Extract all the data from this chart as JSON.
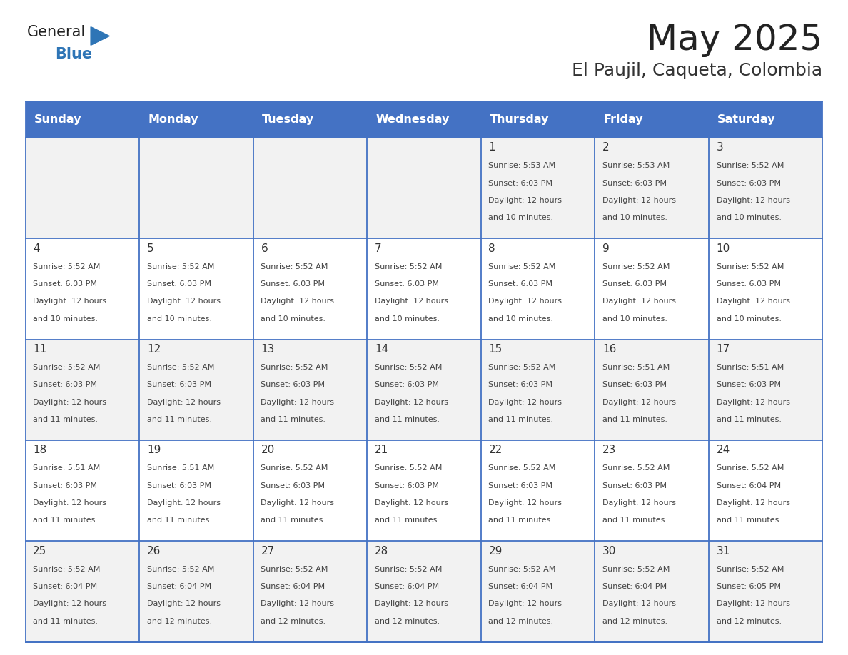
{
  "title": "May 2025",
  "subtitle": "El Paujil, Caqueta, Colombia",
  "days_of_week": [
    "Sunday",
    "Monday",
    "Tuesday",
    "Wednesday",
    "Thursday",
    "Friday",
    "Saturday"
  ],
  "header_bg": "#4472C4",
  "header_text_color": "#FFFFFF",
  "cell_bg_even": "#F2F2F2",
  "cell_bg_odd": "#FFFFFF",
  "cell_border_color": "#4472C4",
  "day_number_color": "#333333",
  "cell_text_color": "#444444",
  "title_color": "#222222",
  "subtitle_color": "#333333",
  "logo_general_color": "#222222",
  "logo_blue_color": "#2E75B6",
  "weeks": [
    {
      "days": [
        {
          "date": null,
          "sunrise": null,
          "sunset": null,
          "daylight_hours": null,
          "daylight_minutes": null
        },
        {
          "date": null,
          "sunrise": null,
          "sunset": null,
          "daylight_hours": null,
          "daylight_minutes": null
        },
        {
          "date": null,
          "sunrise": null,
          "sunset": null,
          "daylight_hours": null,
          "daylight_minutes": null
        },
        {
          "date": null,
          "sunrise": null,
          "sunset": null,
          "daylight_hours": null,
          "daylight_minutes": null
        },
        {
          "date": 1,
          "sunrise": "5:53 AM",
          "sunset": "6:03 PM",
          "daylight_hours": 12,
          "daylight_minutes": 10
        },
        {
          "date": 2,
          "sunrise": "5:53 AM",
          "sunset": "6:03 PM",
          "daylight_hours": 12,
          "daylight_minutes": 10
        },
        {
          "date": 3,
          "sunrise": "5:52 AM",
          "sunset": "6:03 PM",
          "daylight_hours": 12,
          "daylight_minutes": 10
        }
      ]
    },
    {
      "days": [
        {
          "date": 4,
          "sunrise": "5:52 AM",
          "sunset": "6:03 PM",
          "daylight_hours": 12,
          "daylight_minutes": 10
        },
        {
          "date": 5,
          "sunrise": "5:52 AM",
          "sunset": "6:03 PM",
          "daylight_hours": 12,
          "daylight_minutes": 10
        },
        {
          "date": 6,
          "sunrise": "5:52 AM",
          "sunset": "6:03 PM",
          "daylight_hours": 12,
          "daylight_minutes": 10
        },
        {
          "date": 7,
          "sunrise": "5:52 AM",
          "sunset": "6:03 PM",
          "daylight_hours": 12,
          "daylight_minutes": 10
        },
        {
          "date": 8,
          "sunrise": "5:52 AM",
          "sunset": "6:03 PM",
          "daylight_hours": 12,
          "daylight_minutes": 10
        },
        {
          "date": 9,
          "sunrise": "5:52 AM",
          "sunset": "6:03 PM",
          "daylight_hours": 12,
          "daylight_minutes": 10
        },
        {
          "date": 10,
          "sunrise": "5:52 AM",
          "sunset": "6:03 PM",
          "daylight_hours": 12,
          "daylight_minutes": 10
        }
      ]
    },
    {
      "days": [
        {
          "date": 11,
          "sunrise": "5:52 AM",
          "sunset": "6:03 PM",
          "daylight_hours": 12,
          "daylight_minutes": 11
        },
        {
          "date": 12,
          "sunrise": "5:52 AM",
          "sunset": "6:03 PM",
          "daylight_hours": 12,
          "daylight_minutes": 11
        },
        {
          "date": 13,
          "sunrise": "5:52 AM",
          "sunset": "6:03 PM",
          "daylight_hours": 12,
          "daylight_minutes": 11
        },
        {
          "date": 14,
          "sunrise": "5:52 AM",
          "sunset": "6:03 PM",
          "daylight_hours": 12,
          "daylight_minutes": 11
        },
        {
          "date": 15,
          "sunrise": "5:52 AM",
          "sunset": "6:03 PM",
          "daylight_hours": 12,
          "daylight_minutes": 11
        },
        {
          "date": 16,
          "sunrise": "5:51 AM",
          "sunset": "6:03 PM",
          "daylight_hours": 12,
          "daylight_minutes": 11
        },
        {
          "date": 17,
          "sunrise": "5:51 AM",
          "sunset": "6:03 PM",
          "daylight_hours": 12,
          "daylight_minutes": 11
        }
      ]
    },
    {
      "days": [
        {
          "date": 18,
          "sunrise": "5:51 AM",
          "sunset": "6:03 PM",
          "daylight_hours": 12,
          "daylight_minutes": 11
        },
        {
          "date": 19,
          "sunrise": "5:51 AM",
          "sunset": "6:03 PM",
          "daylight_hours": 12,
          "daylight_minutes": 11
        },
        {
          "date": 20,
          "sunrise": "5:52 AM",
          "sunset": "6:03 PM",
          "daylight_hours": 12,
          "daylight_minutes": 11
        },
        {
          "date": 21,
          "sunrise": "5:52 AM",
          "sunset": "6:03 PM",
          "daylight_hours": 12,
          "daylight_minutes": 11
        },
        {
          "date": 22,
          "sunrise": "5:52 AM",
          "sunset": "6:03 PM",
          "daylight_hours": 12,
          "daylight_minutes": 11
        },
        {
          "date": 23,
          "sunrise": "5:52 AM",
          "sunset": "6:03 PM",
          "daylight_hours": 12,
          "daylight_minutes": 11
        },
        {
          "date": 24,
          "sunrise": "5:52 AM",
          "sunset": "6:04 PM",
          "daylight_hours": 12,
          "daylight_minutes": 11
        }
      ]
    },
    {
      "days": [
        {
          "date": 25,
          "sunrise": "5:52 AM",
          "sunset": "6:04 PM",
          "daylight_hours": 12,
          "daylight_minutes": 11
        },
        {
          "date": 26,
          "sunrise": "5:52 AM",
          "sunset": "6:04 PM",
          "daylight_hours": 12,
          "daylight_minutes": 12
        },
        {
          "date": 27,
          "sunrise": "5:52 AM",
          "sunset": "6:04 PM",
          "daylight_hours": 12,
          "daylight_minutes": 12
        },
        {
          "date": 28,
          "sunrise": "5:52 AM",
          "sunset": "6:04 PM",
          "daylight_hours": 12,
          "daylight_minutes": 12
        },
        {
          "date": 29,
          "sunrise": "5:52 AM",
          "sunset": "6:04 PM",
          "daylight_hours": 12,
          "daylight_minutes": 12
        },
        {
          "date": 30,
          "sunrise": "5:52 AM",
          "sunset": "6:04 PM",
          "daylight_hours": 12,
          "daylight_minutes": 12
        },
        {
          "date": 31,
          "sunrise": "5:52 AM",
          "sunset": "6:05 PM",
          "daylight_hours": 12,
          "daylight_minutes": 12
        }
      ]
    }
  ]
}
